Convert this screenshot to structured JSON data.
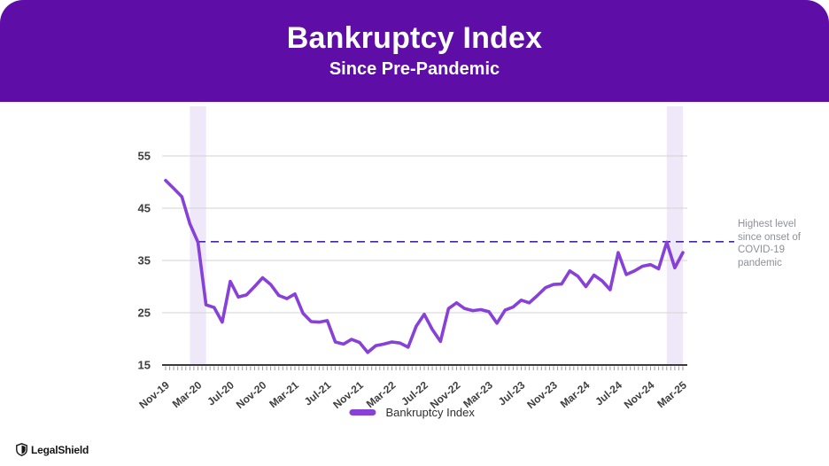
{
  "header": {
    "title": "Bankruptcy Index",
    "subtitle": "Since Pre-Pandemic"
  },
  "chart_data": {
    "type": "line",
    "title": "Bankruptcy Index",
    "x": [
      "Nov-19",
      "Dec-19",
      "Jan-20",
      "Feb-20",
      "Mar-20",
      "Apr-20",
      "May-20",
      "Jun-20",
      "Jul-20",
      "Aug-20",
      "Sep-20",
      "Oct-20",
      "Nov-20",
      "Dec-20",
      "Jan-21",
      "Feb-21",
      "Mar-21",
      "Apr-21",
      "May-21",
      "Jun-21",
      "Jul-21",
      "Aug-21",
      "Sep-21",
      "Oct-21",
      "Nov-21",
      "Dec-21",
      "Jan-22",
      "Feb-22",
      "Mar-22",
      "Apr-22",
      "May-22",
      "Jun-22",
      "Jul-22",
      "Aug-22",
      "Sep-22",
      "Oct-22",
      "Nov-22",
      "Dec-22",
      "Jan-23",
      "Feb-23",
      "Mar-23",
      "Apr-23",
      "May-23",
      "Jun-23",
      "Jul-23",
      "Aug-23",
      "Sep-23",
      "Oct-23",
      "Nov-23",
      "Dec-23",
      "Jan-24",
      "Feb-24",
      "Mar-24",
      "Apr-24",
      "May-24",
      "Jun-24",
      "Jul-24",
      "Aug-24",
      "Sep-24",
      "Oct-24",
      "Nov-24",
      "Dec-24",
      "Jan-25",
      "Feb-25",
      "Mar-25"
    ],
    "series": [
      {
        "name": "Bankruptcy Index",
        "values": [
          50.3,
          48.8,
          47.2,
          42.0,
          38.5,
          26.5,
          26.0,
          23.2,
          31.0,
          28.0,
          28.4,
          30.0,
          31.7,
          30.4,
          28.3,
          27.7,
          28.6,
          24.9,
          23.3,
          23.2,
          23.5,
          19.4,
          19.0,
          19.9,
          19.3,
          17.4,
          18.7,
          19.0,
          19.4,
          19.2,
          18.4,
          22.4,
          24.7,
          21.8,
          19.5,
          25.8,
          26.9,
          25.8,
          25.4,
          25.6,
          25.2,
          23.0,
          25.5,
          26.1,
          27.4,
          26.9,
          28.3,
          29.8,
          30.4,
          30.5,
          33.0,
          32.0,
          30.0,
          32.2,
          31.1,
          29.4,
          36.5,
          32.3,
          33.0,
          33.9,
          34.2,
          33.4,
          38.5,
          33.6,
          36.5
        ]
      }
    ],
    "yticks": [
      15,
      25,
      35,
      45,
      55
    ],
    "ylim": [
      15,
      57
    ],
    "xtick_every": 4,
    "xtick_labels": [
      "Nov-19",
      "Mar-20",
      "Jul-20",
      "Nov-20",
      "Mar-21",
      "Jul-21",
      "Nov-21",
      "Mar-22",
      "Jul-22",
      "Nov-22",
      "Mar-23",
      "Jul-23",
      "Nov-23",
      "Mar-24",
      "Jul-24",
      "Nov-24",
      "Mar-25"
    ],
    "grid": "horizontal",
    "reference_line": {
      "value": 38.6,
      "style": "dashed",
      "label": "Highest level since onset of COVID-19 pandemic"
    },
    "highlight_bands": [
      {
        "center_label": "Mar-20",
        "months_span": 2
      },
      {
        "center_label": "Feb-25",
        "months_span": 2
      }
    ],
    "legend": {
      "label": "Bankruptcy Index",
      "position": "bottom"
    },
    "theme": {
      "header_bg": "#5e0da6",
      "line_color": "#8740d8",
      "reference_line_color": "#4527a0",
      "band_color": "#efe8f9",
      "grid_color": "#d3d3d3",
      "baseline_color": "#3a3a3a",
      "axis_text_color": "#3e3e3e",
      "annotation_text_color": "#8e9197"
    }
  },
  "footer": {
    "brand": "LegalShield"
  }
}
